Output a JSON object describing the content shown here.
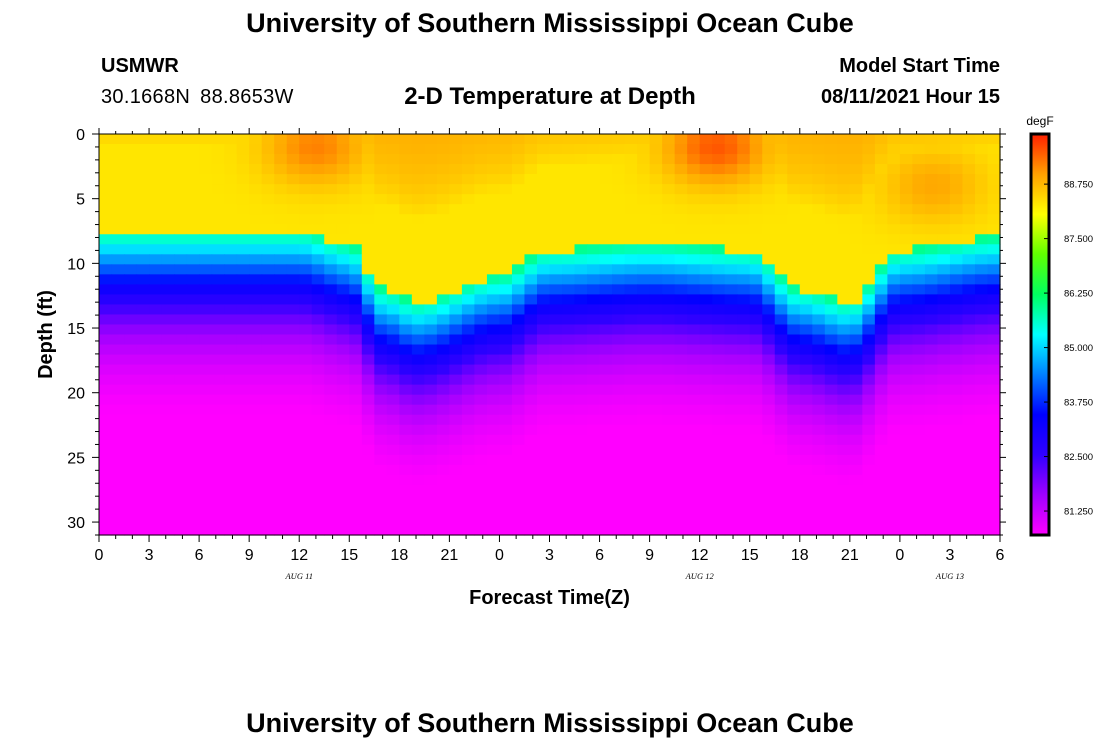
{
  "header": {
    "title": "University of Southern Mississippi Ocean Cube",
    "station": "USMWR",
    "lat": "30.1668N",
    "lon": "88.8653W",
    "plot_title": "2-D Temperature at Depth",
    "model_start_label": "Model Start Time",
    "model_start_value": "08/11/2021 Hour 15"
  },
  "footer": {
    "title": "University of Southern Mississippi Ocean Cube"
  },
  "chart_data": {
    "type": "heatmap",
    "title": "2-D Temperature at Depth",
    "xlabel": "Forecast Time(Z)",
    "ylabel": "Depth (ft)",
    "x_ticks": [
      "0",
      "3",
      "6",
      "9",
      "12",
      "15",
      "18",
      "21",
      "0",
      "3",
      "6",
      "9",
      "12",
      "15",
      "18",
      "21",
      "0",
      "3",
      "6"
    ],
    "x_range_hours": [
      0,
      54
    ],
    "date_labels": [
      {
        "text": "AUG 11",
        "hour": 12
      },
      {
        "text": "AUG 12",
        "hour": 36
      },
      {
        "text": "AUG 13",
        "hour": 51
      }
    ],
    "y_ticks": [
      0,
      5,
      10,
      15,
      20,
      25,
      30
    ],
    "y_range_ft": [
      0,
      31
    ],
    "colorbar": {
      "unit": "degF",
      "tick_labels": [
        "88.750",
        "87.500",
        "86.250",
        "85.000",
        "83.750",
        "82.500",
        "81.250"
      ],
      "tick_values": [
        88.75,
        87.5,
        86.25,
        85.0,
        83.75,
        82.5,
        81.25
      ],
      "range": [
        80.7,
        89.9
      ],
      "colors": [
        "#ff00ff",
        "#a000ff",
        "#3000ff",
        "#0000ff",
        "#0080ff",
        "#00ffff",
        "#00ff60",
        "#60ff00",
        "#ffff00",
        "#ffa000",
        "#ff2000"
      ]
    },
    "thermocline_depth_ft": [
      {
        "hour": 0,
        "depth": 9.5
      },
      {
        "hour": 12,
        "depth": 9.5
      },
      {
        "hour": 15,
        "depth": 10.5
      },
      {
        "hour": 17,
        "depth": 14
      },
      {
        "hour": 19,
        "depth": 15
      },
      {
        "hour": 24,
        "depth": 13
      },
      {
        "hour": 27,
        "depth": 11
      },
      {
        "hour": 33,
        "depth": 10.5
      },
      {
        "hour": 39,
        "depth": 11
      },
      {
        "hour": 42,
        "depth": 14
      },
      {
        "hour": 45,
        "depth": 15
      },
      {
        "hour": 48,
        "depth": 11
      },
      {
        "hour": 54,
        "depth": 10
      }
    ],
    "surface_warm_cores": [
      {
        "hour": 13,
        "depth": 1,
        "temp": 89.3
      },
      {
        "hour": 37,
        "depth": 1,
        "temp": 89.6
      },
      {
        "hour": 50,
        "depth": 4,
        "temp": 89.0
      }
    ],
    "bottom_cold_cores": [
      {
        "hour": 8,
        "depth": 30,
        "temp": 80.8
      },
      {
        "hour": 24,
        "depth": 30,
        "temp": 81.3
      }
    ]
  }
}
